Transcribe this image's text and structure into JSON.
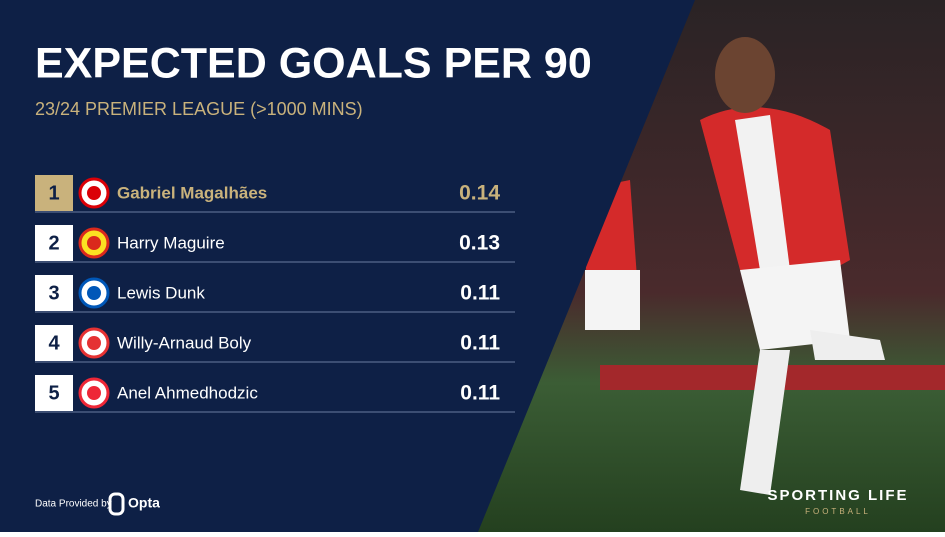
{
  "header": {
    "title": "EXPECTED GOALS PER 90",
    "subtitle": "23/24 PREMIER LEAGUE (>1000 MINS)"
  },
  "table": {
    "rows": [
      {
        "rank": "1",
        "player": "Gabriel Magalhães",
        "value": "0.14"
      },
      {
        "rank": "2",
        "player": "Harry Maguire",
        "value": "0.13"
      },
      {
        "rank": "3",
        "player": "Lewis Dunk",
        "value": "0.11"
      },
      {
        "rank": "4",
        "player": "Willy-Arnaud Boly",
        "value": "0.11"
      },
      {
        "rank": "5",
        "player": "Anel Ahmedhodzic",
        "value": "0.11"
      }
    ]
  },
  "footer": {
    "credit": "Data Provided by",
    "provider": "Opta",
    "brand": "SPORTING LIFE",
    "brand_sub": "FOOTBALL"
  }
}
